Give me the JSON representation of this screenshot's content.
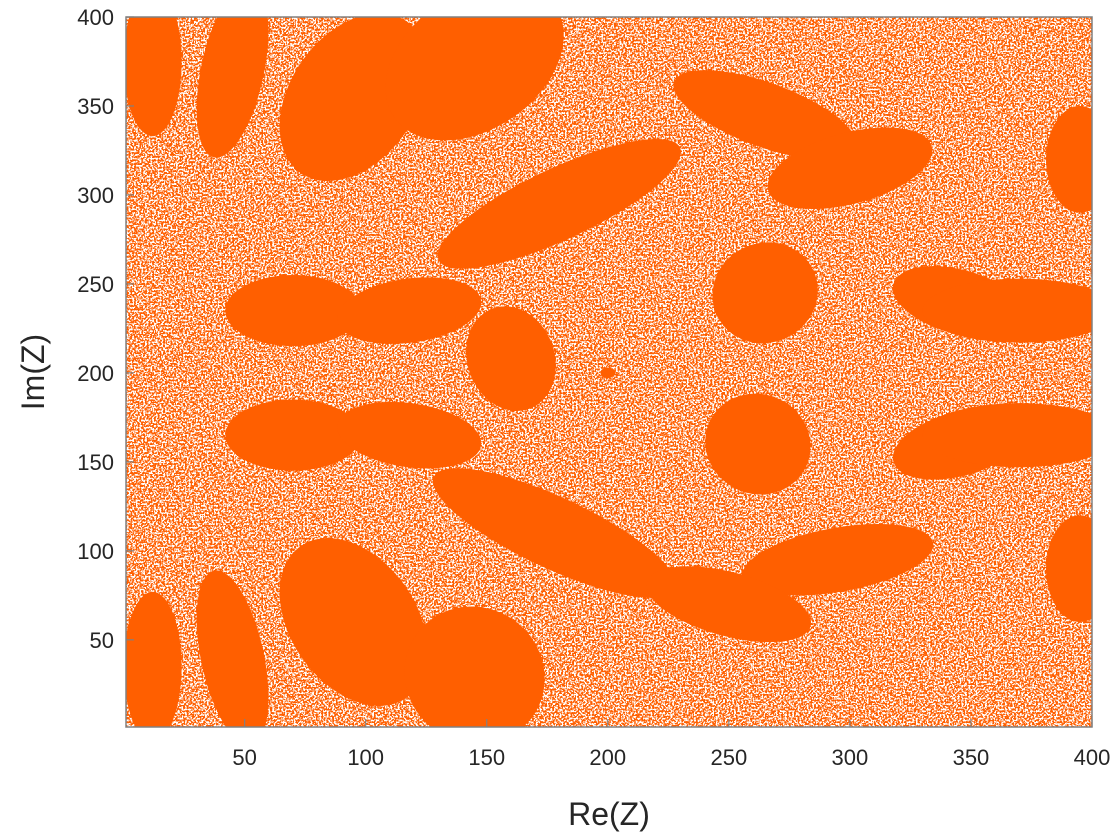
{
  "chart_data": {
    "type": "heatmap",
    "title": "",
    "xlabel": "Re(Z)",
    "ylabel": "Im(Z)",
    "xlim": [
      1,
      400
    ],
    "ylim": [
      1,
      400
    ],
    "xticks": [
      50,
      100,
      150,
      200,
      250,
      300,
      350,
      400
    ],
    "yticks": [
      50,
      100,
      150,
      200,
      250,
      300,
      350,
      400
    ],
    "grid": false,
    "legend": "none",
    "colors": {
      "fill": "#ff5f00",
      "background": "#ffffff",
      "axis": "#262626",
      "frame": "#808080"
    },
    "description_series": [
      {
        "name": "",
        "values": []
      }
    ]
  }
}
